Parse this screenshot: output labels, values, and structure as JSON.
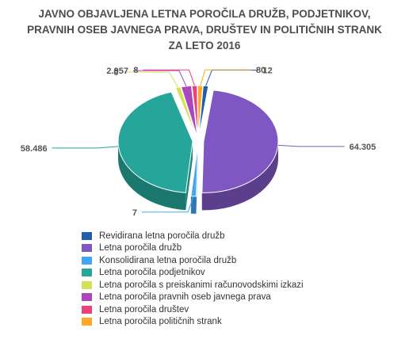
{
  "chart_data": {
    "type": "pie",
    "variant": "3d-exploded",
    "title_lines": [
      "JAVNO OBJAVLJENA LETNA POROČILA DRUŽB, PODJETNIKOV,",
      "PRAVNIH OSEB JAVNEGA PRAVA, DRUŠTEV IN POLITIČNIH STRANK",
      "ZA LETO 2016"
    ],
    "categories": [
      "Revidirana letna poročila družb",
      "Letna poročila družb",
      "Konsolidirana letna poročila družb",
      "Letna poročila podjetnikov",
      "Letna poročila s preiskanimi računovodskimi izkazi",
      "Letna poročila pravnih oseb javnega prava",
      "Letna poročila društev",
      "Letna poročila političnih strank"
    ],
    "values": [
      12,
      64305,
      7,
      58486,
      0,
      2957,
      8,
      80
    ],
    "data_labels": [
      "12",
      "64.305",
      "7",
      "58.486",
      "0",
      "2.957",
      "8",
      "80"
    ],
    "colors": [
      "#1f5ea8",
      "#7e57c2",
      "#42a5f5",
      "#26a69a",
      "#d4e157",
      "#ab47bc",
      "#ec407a",
      "#ffa726"
    ],
    "legend_position": "bottom-left"
  }
}
